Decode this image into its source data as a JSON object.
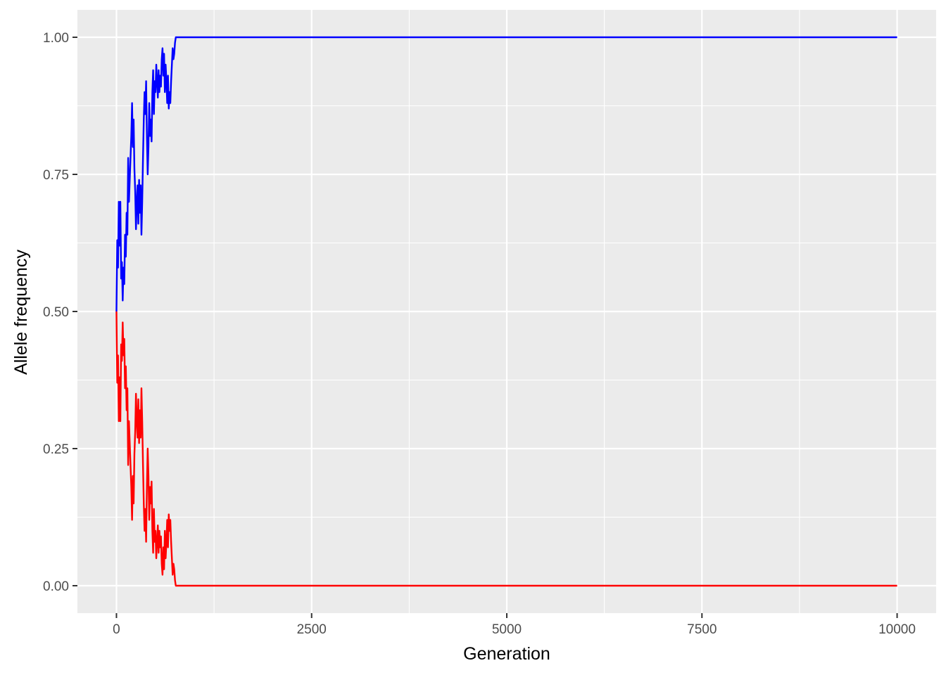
{
  "chart_data": {
    "type": "line",
    "title": "",
    "xlabel": "Generation",
    "ylabel": "Allele frequency",
    "xlim": [
      -500,
      10500
    ],
    "ylim": [
      -0.05,
      1.05
    ],
    "x_ticks": [
      0,
      2500,
      5000,
      7500,
      10000
    ],
    "x_tick_labels": [
      "0",
      "2500",
      "5000",
      "7500",
      "10000"
    ],
    "y_ticks": [
      0,
      0.25,
      0.5,
      0.75,
      1
    ],
    "y_tick_labels": [
      "0.00",
      "0.25",
      "0.50",
      "0.75",
      "1.00"
    ],
    "grid": true,
    "legend": "none",
    "colors": {
      "panel": "#ebebeb",
      "grid": "#ffffff",
      "series_a": "#0000ff",
      "series_b": "#ff0000"
    },
    "series": [
      {
        "color": "#0000ff",
        "x": [
          0,
          10,
          20,
          30,
          40,
          50,
          60,
          70,
          80,
          90,
          100,
          110,
          120,
          130,
          140,
          150,
          160,
          170,
          180,
          190,
          200,
          210,
          220,
          230,
          240,
          250,
          260,
          270,
          280,
          290,
          300,
          310,
          320,
          330,
          340,
          350,
          360,
          370,
          380,
          390,
          400,
          410,
          420,
          430,
          440,
          450,
          460,
          470,
          480,
          490,
          500,
          510,
          520,
          530,
          540,
          550,
          560,
          570,
          580,
          590,
          600,
          610,
          620,
          630,
          640,
          650,
          660,
          670,
          680,
          690,
          700,
          710,
          720,
          730,
          740,
          750,
          760,
          770,
          780,
          790,
          800,
          810,
          820,
          830,
          840,
          850,
          860,
          870,
          880,
          10000
        ],
        "y": [
          0.5,
          0.63,
          0.58,
          0.7,
          0.62,
          0.7,
          0.56,
          0.59,
          0.52,
          0.58,
          0.55,
          0.64,
          0.6,
          0.68,
          0.64,
          0.78,
          0.7,
          0.74,
          0.78,
          0.82,
          0.88,
          0.8,
          0.85,
          0.76,
          0.72,
          0.65,
          0.7,
          0.73,
          0.66,
          0.74,
          0.68,
          0.73,
          0.64,
          0.7,
          0.78,
          0.85,
          0.9,
          0.86,
          0.92,
          0.82,
          0.75,
          0.8,
          0.88,
          0.82,
          0.85,
          0.81,
          0.9,
          0.94,
          0.86,
          0.92,
          0.9,
          0.95,
          0.92,
          0.89,
          0.94,
          0.9,
          0.93,
          0.91,
          0.96,
          0.98,
          0.93,
          0.97,
          0.9,
          0.95,
          0.92,
          0.88,
          0.93,
          0.87,
          0.9,
          0.88,
          0.92,
          0.95,
          0.98,
          0.96,
          0.97,
          0.99,
          1.0,
          1.0,
          1.0,
          1.0,
          1.0,
          1.0,
          1.0,
          1.0,
          1.0,
          1.0,
          1.0,
          1.0,
          1.0,
          1.0
        ]
      },
      {
        "color": "#ff0000",
        "x": [
          0,
          10,
          20,
          30,
          40,
          50,
          60,
          70,
          80,
          90,
          100,
          110,
          120,
          130,
          140,
          150,
          160,
          170,
          180,
          190,
          200,
          210,
          220,
          230,
          240,
          250,
          260,
          270,
          280,
          290,
          300,
          310,
          320,
          330,
          340,
          350,
          360,
          370,
          380,
          390,
          400,
          410,
          420,
          430,
          440,
          450,
          460,
          470,
          480,
          490,
          500,
          510,
          520,
          530,
          540,
          550,
          560,
          570,
          580,
          590,
          600,
          610,
          620,
          630,
          640,
          650,
          660,
          670,
          680,
          690,
          700,
          710,
          720,
          730,
          740,
          750,
          760,
          770,
          780,
          790,
          800,
          810,
          820,
          830,
          840,
          850,
          860,
          870,
          880,
          10000
        ],
        "y": [
          0.5,
          0.37,
          0.42,
          0.3,
          0.38,
          0.3,
          0.44,
          0.41,
          0.48,
          0.42,
          0.45,
          0.36,
          0.4,
          0.32,
          0.36,
          0.22,
          0.3,
          0.26,
          0.22,
          0.18,
          0.12,
          0.2,
          0.15,
          0.24,
          0.28,
          0.35,
          0.3,
          0.27,
          0.34,
          0.26,
          0.32,
          0.27,
          0.36,
          0.3,
          0.22,
          0.15,
          0.1,
          0.14,
          0.08,
          0.18,
          0.25,
          0.2,
          0.12,
          0.18,
          0.15,
          0.19,
          0.1,
          0.06,
          0.14,
          0.08,
          0.1,
          0.05,
          0.08,
          0.11,
          0.06,
          0.1,
          0.07,
          0.09,
          0.04,
          0.02,
          0.07,
          0.03,
          0.1,
          0.05,
          0.08,
          0.12,
          0.07,
          0.13,
          0.1,
          0.12,
          0.08,
          0.05,
          0.02,
          0.04,
          0.03,
          0.01,
          0.0,
          0.0,
          0.0,
          0.0,
          0.0,
          0.0,
          0.0,
          0.0,
          0.0,
          0.0,
          0.0,
          0.0,
          0.0,
          0.0
        ]
      }
    ]
  }
}
